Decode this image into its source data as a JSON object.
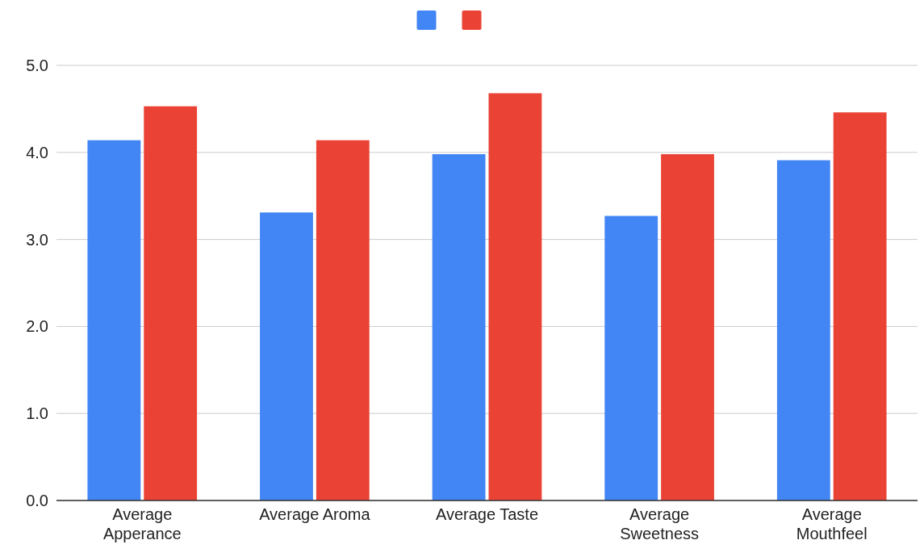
{
  "chart_data": {
    "type": "bar",
    "categories": [
      "Average Apperance",
      "Average Aroma",
      "Average Taste",
      "Average Sweetness",
      "Average Mouthfeel"
    ],
    "series": [
      {
        "color": "#4285f4",
        "values": [
          4.14,
          3.31,
          3.98,
          3.27,
          3.91
        ]
      },
      {
        "color": "#ea4335",
        "values": [
          4.53,
          4.14,
          4.68,
          3.98,
          4.46
        ]
      }
    ],
    "ylim": [
      0,
      5
    ],
    "yticks": [
      {
        "value": 0,
        "label": "0.0"
      },
      {
        "value": 1,
        "label": "1.0"
      },
      {
        "value": 2,
        "label": "2.0"
      },
      {
        "value": 3,
        "label": "3.0"
      },
      {
        "value": 4,
        "label": "4.0"
      },
      {
        "value": 5,
        "label": "5.0"
      }
    ],
    "grid": "y"
  }
}
